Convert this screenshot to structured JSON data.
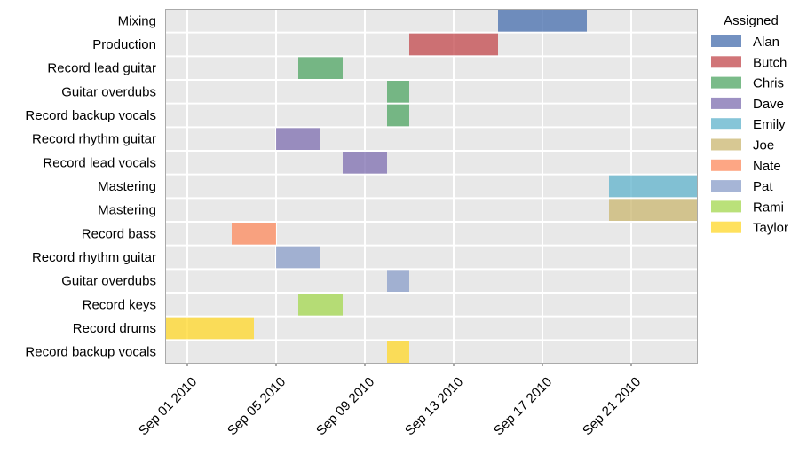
{
  "chart_data": {
    "type": "gantt",
    "xlim": [
      "2010-08-31",
      "2010-09-24"
    ],
    "x_ticks": [
      "2010-09-01",
      "2010-09-05",
      "2010-09-09",
      "2010-09-13",
      "2010-09-17",
      "2010-09-21"
    ],
    "x_tick_labels": [
      "Sep 01 2010",
      "Sep 05 2010",
      "Sep 09 2010",
      "Sep 13 2010",
      "Sep 17 2010",
      "Sep 21 2010"
    ],
    "grid": true,
    "legend_title": "Assigned",
    "legend_position": "right",
    "assignees": [
      {
        "name": "Alan",
        "color": "#4c72b0"
      },
      {
        "name": "Butch",
        "color": "#c44e52"
      },
      {
        "name": "Chris",
        "color": "#55a868"
      },
      {
        "name": "Dave",
        "color": "#8172b2"
      },
      {
        "name": "Emily",
        "color": "#64b5cd"
      },
      {
        "name": "Joe",
        "color": "#ccb974"
      },
      {
        "name": "Nate",
        "color": "#fc8d62"
      },
      {
        "name": "Pat",
        "color": "#8da0cb"
      },
      {
        "name": "Rami",
        "color": "#a6d854"
      },
      {
        "name": "Taylor",
        "color": "#ffd92f"
      }
    ],
    "tasks": [
      {
        "task": "Mixing",
        "assigned": "Alan",
        "start": "2010-09-15",
        "end": "2010-09-19"
      },
      {
        "task": "Production",
        "assigned": "Butch",
        "start": "2010-09-11",
        "end": "2010-09-15"
      },
      {
        "task": "Record lead guitar",
        "assigned": "Chris",
        "start": "2010-09-06",
        "end": "2010-09-08"
      },
      {
        "task": "Guitar overdubs",
        "assigned": "Chris",
        "start": "2010-09-10",
        "end": "2010-09-11"
      },
      {
        "task": "Record backup vocals",
        "assigned": "Chris",
        "start": "2010-09-10",
        "end": "2010-09-11"
      },
      {
        "task": "Record rhythm guitar",
        "assigned": "Dave",
        "start": "2010-09-05",
        "end": "2010-09-07"
      },
      {
        "task": "Record lead vocals",
        "assigned": "Dave",
        "start": "2010-09-08",
        "end": "2010-09-10"
      },
      {
        "task": "Mastering",
        "assigned": "Emily",
        "start": "2010-09-20",
        "end": "2010-09-24"
      },
      {
        "task": "Mastering",
        "assigned": "Joe",
        "start": "2010-09-20",
        "end": "2010-09-24"
      },
      {
        "task": "Record bass",
        "assigned": "Nate",
        "start": "2010-09-03",
        "end": "2010-09-05"
      },
      {
        "task": "Record rhythm guitar",
        "assigned": "Pat",
        "start": "2010-09-05",
        "end": "2010-09-07"
      },
      {
        "task": "Guitar overdubs",
        "assigned": "Pat",
        "start": "2010-09-10",
        "end": "2010-09-11"
      },
      {
        "task": "Record keys",
        "assigned": "Rami",
        "start": "2010-09-06",
        "end": "2010-09-08"
      },
      {
        "task": "Record drums",
        "assigned": "Taylor",
        "start": "2010-08-31",
        "end": "2010-09-04"
      },
      {
        "task": "Record backup vocals",
        "assigned": "Taylor",
        "start": "2010-09-10",
        "end": "2010-09-11"
      }
    ]
  }
}
